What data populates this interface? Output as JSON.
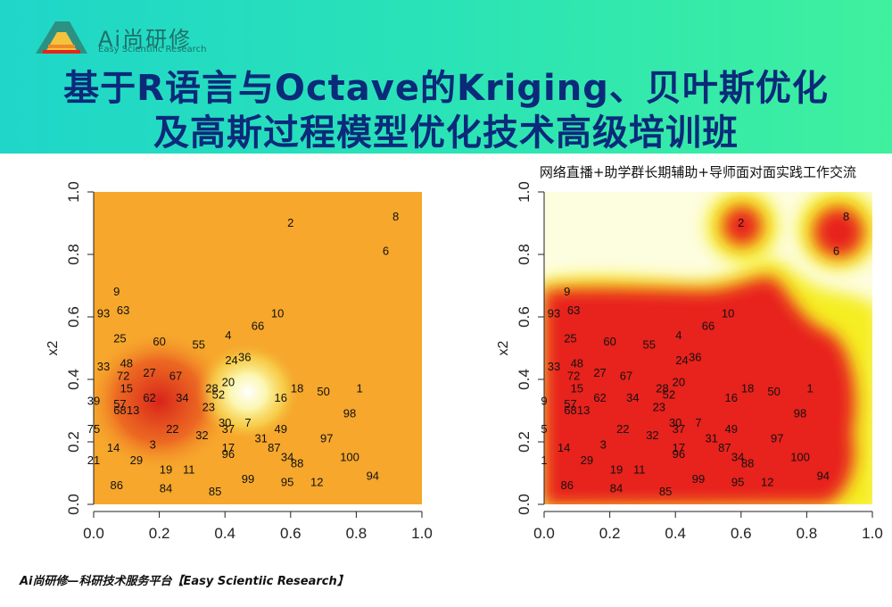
{
  "header": {
    "brand": "Ai尚研修",
    "brand_sub": "Easy Scientific Research",
    "title_line1": "基于R语言与Octave的Kriging、贝叶斯优化",
    "title_line2": "及高斯过程模型优化技术高级培训班",
    "subtitle": "网络直播+助学群长期辅助+导师面对面实践工作交流"
  },
  "footer": {
    "text": "Ai尚研修—科研技术服务平台【Easy Scientiic Research】"
  },
  "colors": {
    "banner_start": "#1fd6c9",
    "banner_end": "#3ff09e",
    "title": "#0b2a7a",
    "accent_red": "#e8231a",
    "accent_yellow": "#f5ee20"
  },
  "chart_data": [
    {
      "type": "scatter",
      "title": "",
      "xlabel": "",
      "ylabel": "x2",
      "xlim": [
        0,
        1
      ],
      "ylim": [
        0,
        1
      ],
      "x_ticks": [
        "0.0",
        "0.2",
        "0.4",
        "0.6",
        "0.8",
        "1.0"
      ],
      "y_ticks": [
        "0.0",
        "0.2",
        "0.4",
        "0.6",
        "0.8",
        "1.0"
      ],
      "background": "orange surface with red hotspot near (0.2,0.33) and pale yellow/white spot near (0.47,0.36)",
      "points": [
        {
          "label": "2",
          "x": 0.6,
          "y": 0.9
        },
        {
          "label": "8",
          "x": 0.92,
          "y": 0.92
        },
        {
          "label": "6",
          "x": 0.89,
          "y": 0.81
        },
        {
          "label": "9",
          "x": 0.07,
          "y": 0.68
        },
        {
          "label": "93",
          "x": 0.03,
          "y": 0.61
        },
        {
          "label": "63",
          "x": 0.09,
          "y": 0.62
        },
        {
          "label": "10",
          "x": 0.56,
          "y": 0.61
        },
        {
          "label": "66",
          "x": 0.5,
          "y": 0.57
        },
        {
          "label": "25",
          "x": 0.08,
          "y": 0.53
        },
        {
          "label": "60",
          "x": 0.2,
          "y": 0.52
        },
        {
          "label": "55",
          "x": 0.32,
          "y": 0.51
        },
        {
          "label": "4",
          "x": 0.41,
          "y": 0.54
        },
        {
          "label": "24",
          "x": 0.42,
          "y": 0.46
        },
        {
          "label": "36",
          "x": 0.46,
          "y": 0.47
        },
        {
          "label": "33",
          "x": 0.03,
          "y": 0.44
        },
        {
          "label": "48",
          "x": 0.1,
          "y": 0.45
        },
        {
          "label": "72",
          "x": 0.09,
          "y": 0.41
        },
        {
          "label": "27",
          "x": 0.17,
          "y": 0.42
        },
        {
          "label": "67",
          "x": 0.25,
          "y": 0.41
        },
        {
          "label": "20",
          "x": 0.41,
          "y": 0.39
        },
        {
          "label": "28",
          "x": 0.36,
          "y": 0.37
        },
        {
          "label": "15",
          "x": 0.1,
          "y": 0.37
        },
        {
          "label": "18",
          "x": 0.62,
          "y": 0.37
        },
        {
          "label": "1",
          "x": 0.81,
          "y": 0.37
        },
        {
          "label": "50",
          "x": 0.7,
          "y": 0.36
        },
        {
          "label": "16",
          "x": 0.57,
          "y": 0.34
        },
        {
          "label": "62",
          "x": 0.17,
          "y": 0.34
        },
        {
          "label": "34",
          "x": 0.27,
          "y": 0.34
        },
        {
          "label": "52",
          "x": 0.38,
          "y": 0.35
        },
        {
          "label": "39",
          "x": 0.0,
          "y": 0.33
        },
        {
          "label": "57",
          "x": 0.08,
          "y": 0.32
        },
        {
          "label": "68",
          "x": 0.08,
          "y": 0.3
        },
        {
          "label": "13",
          "x": 0.12,
          "y": 0.3
        },
        {
          "label": "23",
          "x": 0.35,
          "y": 0.31
        },
        {
          "label": "98",
          "x": 0.78,
          "y": 0.29
        },
        {
          "label": "7",
          "x": 0.47,
          "y": 0.26
        },
        {
          "label": "30",
          "x": 0.4,
          "y": 0.26
        },
        {
          "label": "37",
          "x": 0.41,
          "y": 0.24
        },
        {
          "label": "49",
          "x": 0.57,
          "y": 0.24
        },
        {
          "label": "75",
          "x": 0.0,
          "y": 0.24
        },
        {
          "label": "22",
          "x": 0.24,
          "y": 0.24
        },
        {
          "label": "32",
          "x": 0.33,
          "y": 0.22
        },
        {
          "label": "31",
          "x": 0.51,
          "y": 0.21
        },
        {
          "label": "97",
          "x": 0.71,
          "y": 0.21
        },
        {
          "label": "3",
          "x": 0.18,
          "y": 0.19
        },
        {
          "label": "14",
          "x": 0.06,
          "y": 0.18
        },
        {
          "label": "17",
          "x": 0.41,
          "y": 0.18
        },
        {
          "label": "96",
          "x": 0.41,
          "y": 0.16
        },
        {
          "label": "87",
          "x": 0.55,
          "y": 0.18
        },
        {
          "label": "34",
          "x": 0.59,
          "y": 0.15
        },
        {
          "label": "29",
          "x": 0.13,
          "y": 0.14
        },
        {
          "label": "21",
          "x": 0.0,
          "y": 0.14
        },
        {
          "label": "100",
          "x": 0.78,
          "y": 0.15
        },
        {
          "label": "88",
          "x": 0.62,
          "y": 0.13
        },
        {
          "label": "19",
          "x": 0.22,
          "y": 0.11
        },
        {
          "label": "11",
          "x": 0.29,
          "y": 0.11
        },
        {
          "label": "94",
          "x": 0.85,
          "y": 0.09
        },
        {
          "label": "99",
          "x": 0.47,
          "y": 0.08
        },
        {
          "label": "95",
          "x": 0.59,
          "y": 0.07
        },
        {
          "label": "12",
          "x": 0.68,
          "y": 0.07
        },
        {
          "label": "86",
          "x": 0.07,
          "y": 0.06
        },
        {
          "label": "84",
          "x": 0.22,
          "y": 0.05
        },
        {
          "label": "85",
          "x": 0.37,
          "y": 0.04
        }
      ]
    },
    {
      "type": "scatter",
      "title": "",
      "xlabel": "",
      "ylabel": "x2",
      "xlim": [
        0,
        1
      ],
      "ylim": [
        0,
        1
      ],
      "x_ticks": [
        "0.0",
        "0.2",
        "0.4",
        "0.6",
        "0.8",
        "1.0"
      ],
      "y_ticks": [
        "0.0",
        "0.2",
        "0.4",
        "0.6",
        "0.8",
        "1.0"
      ],
      "background": "red region covering sampled area, yellow/white elsewhere",
      "points": [
        {
          "label": "2",
          "x": 0.6,
          "y": 0.9
        },
        {
          "label": "8",
          "x": 0.92,
          "y": 0.92
        },
        {
          "label": "6",
          "x": 0.89,
          "y": 0.81
        },
        {
          "label": "9",
          "x": 0.07,
          "y": 0.68
        },
        {
          "label": "93",
          "x": 0.03,
          "y": 0.61
        },
        {
          "label": "63",
          "x": 0.09,
          "y": 0.62
        },
        {
          "label": "10",
          "x": 0.56,
          "y": 0.61
        },
        {
          "label": "66",
          "x": 0.5,
          "y": 0.57
        },
        {
          "label": "25",
          "x": 0.08,
          "y": 0.53
        },
        {
          "label": "60",
          "x": 0.2,
          "y": 0.52
        },
        {
          "label": "55",
          "x": 0.32,
          "y": 0.51
        },
        {
          "label": "4",
          "x": 0.41,
          "y": 0.54
        },
        {
          "label": "24",
          "x": 0.42,
          "y": 0.46
        },
        {
          "label": "36",
          "x": 0.46,
          "y": 0.47
        },
        {
          "label": "33",
          "x": 0.03,
          "y": 0.44
        },
        {
          "label": "48",
          "x": 0.1,
          "y": 0.45
        },
        {
          "label": "72",
          "x": 0.09,
          "y": 0.41
        },
        {
          "label": "27",
          "x": 0.17,
          "y": 0.42
        },
        {
          "label": "67",
          "x": 0.25,
          "y": 0.41
        },
        {
          "label": "20",
          "x": 0.41,
          "y": 0.39
        },
        {
          "label": "28",
          "x": 0.36,
          "y": 0.37
        },
        {
          "label": "15",
          "x": 0.1,
          "y": 0.37
        },
        {
          "label": "18",
          "x": 0.62,
          "y": 0.37
        },
        {
          "label": "1",
          "x": 0.81,
          "y": 0.37
        },
        {
          "label": "50",
          "x": 0.7,
          "y": 0.36
        },
        {
          "label": "16",
          "x": 0.57,
          "y": 0.34
        },
        {
          "label": "62",
          "x": 0.17,
          "y": 0.34
        },
        {
          "label": "34",
          "x": 0.27,
          "y": 0.34
        },
        {
          "label": "52",
          "x": 0.38,
          "y": 0.35
        },
        {
          "label": "9",
          "x": 0.0,
          "y": 0.33
        },
        {
          "label": "57",
          "x": 0.08,
          "y": 0.32
        },
        {
          "label": "68",
          "x": 0.08,
          "y": 0.3
        },
        {
          "label": "13",
          "x": 0.12,
          "y": 0.3
        },
        {
          "label": "23",
          "x": 0.35,
          "y": 0.31
        },
        {
          "label": "98",
          "x": 0.78,
          "y": 0.29
        },
        {
          "label": "7",
          "x": 0.47,
          "y": 0.26
        },
        {
          "label": "30",
          "x": 0.4,
          "y": 0.26
        },
        {
          "label": "37",
          "x": 0.41,
          "y": 0.24
        },
        {
          "label": "49",
          "x": 0.57,
          "y": 0.24
        },
        {
          "label": "5",
          "x": 0.0,
          "y": 0.24
        },
        {
          "label": "22",
          "x": 0.24,
          "y": 0.24
        },
        {
          "label": "32",
          "x": 0.33,
          "y": 0.22
        },
        {
          "label": "31",
          "x": 0.51,
          "y": 0.21
        },
        {
          "label": "97",
          "x": 0.71,
          "y": 0.21
        },
        {
          "label": "3",
          "x": 0.18,
          "y": 0.19
        },
        {
          "label": "14",
          "x": 0.06,
          "y": 0.18
        },
        {
          "label": "17",
          "x": 0.41,
          "y": 0.18
        },
        {
          "label": "96",
          "x": 0.41,
          "y": 0.16
        },
        {
          "label": "87",
          "x": 0.55,
          "y": 0.18
        },
        {
          "label": "34",
          "x": 0.59,
          "y": 0.15
        },
        {
          "label": "29",
          "x": 0.13,
          "y": 0.14
        },
        {
          "label": "1",
          "x": 0.0,
          "y": 0.14
        },
        {
          "label": "100",
          "x": 0.78,
          "y": 0.15
        },
        {
          "label": "88",
          "x": 0.62,
          "y": 0.13
        },
        {
          "label": "19",
          "x": 0.22,
          "y": 0.11
        },
        {
          "label": "11",
          "x": 0.29,
          "y": 0.11
        },
        {
          "label": "94",
          "x": 0.85,
          "y": 0.09
        },
        {
          "label": "99",
          "x": 0.47,
          "y": 0.08
        },
        {
          "label": "95",
          "x": 0.59,
          "y": 0.07
        },
        {
          "label": "12",
          "x": 0.68,
          "y": 0.07
        },
        {
          "label": "86",
          "x": 0.07,
          "y": 0.06
        },
        {
          "label": "84",
          "x": 0.22,
          "y": 0.05
        },
        {
          "label": "85",
          "x": 0.37,
          "y": 0.04
        }
      ]
    }
  ]
}
